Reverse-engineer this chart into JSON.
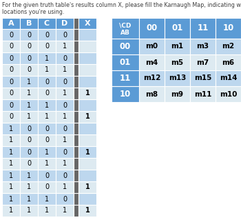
{
  "title_line1": "For the given truth table's results column X, please fill the Karnaugh Map, indicating which M",
  "title_line2": "locations you're using.",
  "truth_table": {
    "rows": [
      [
        0,
        0,
        0,
        0,
        ""
      ],
      [
        0,
        0,
        0,
        1,
        ""
      ],
      [
        0,
        0,
        1,
        0,
        ""
      ],
      [
        0,
        0,
        1,
        1,
        ""
      ],
      [
        0,
        1,
        0,
        0,
        ""
      ],
      [
        0,
        1,
        0,
        1,
        "1"
      ],
      [
        0,
        1,
        1,
        0,
        ""
      ],
      [
        0,
        1,
        1,
        1,
        "1"
      ],
      [
        1,
        0,
        0,
        0,
        ""
      ],
      [
        1,
        0,
        0,
        1,
        ""
      ],
      [
        1,
        0,
        1,
        0,
        "1"
      ],
      [
        1,
        0,
        1,
        1,
        ""
      ],
      [
        1,
        1,
        0,
        0,
        ""
      ],
      [
        1,
        1,
        0,
        1,
        "1"
      ],
      [
        1,
        1,
        1,
        0,
        ""
      ],
      [
        1,
        1,
        1,
        1,
        "1"
      ]
    ]
  },
  "kmap": {
    "col_headers": [
      "00",
      "01",
      "11",
      "10"
    ],
    "row_headers": [
      "00",
      "01",
      "11",
      "10"
    ],
    "cells": [
      [
        "m0",
        "m1",
        "m3",
        "m2"
      ],
      [
        "m4",
        "m5",
        "m7",
        "m6"
      ],
      [
        "m12",
        "m13",
        "m15",
        "m14"
      ],
      [
        "m8",
        "m9",
        "m11",
        "m10"
      ]
    ]
  },
  "header_bg": "#5b9bd5",
  "header_text": "#ffffff",
  "cell_bg_light": "#bdd7ee",
  "cell_bg_lighter": "#ddeaf1",
  "sep_col_bg": "#666666",
  "title_color": "#3f3f3f"
}
